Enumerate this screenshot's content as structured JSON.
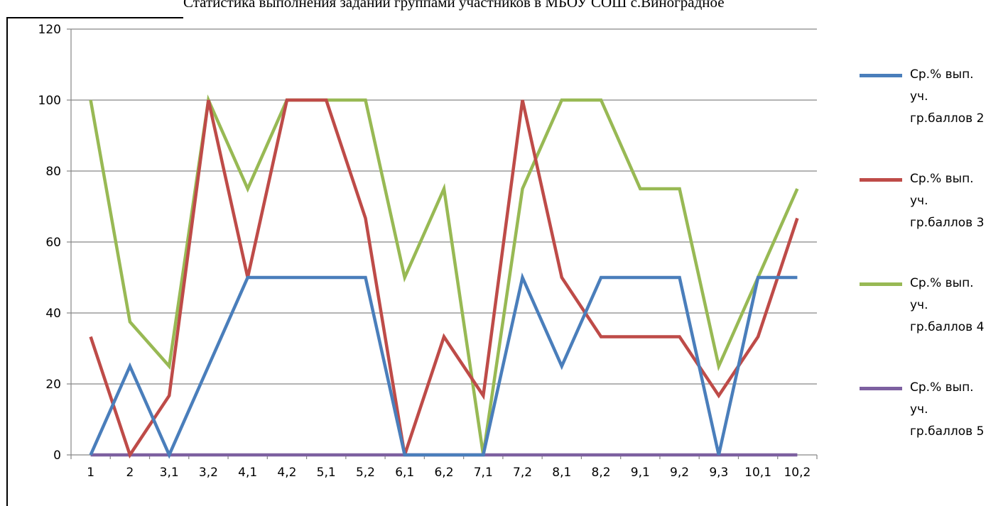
{
  "chart_data": {
    "type": "line",
    "title": "Статистика выполнения заданий группами участников в МБОУ СОШ с.Виноградное",
    "xlabel": "",
    "ylabel": "",
    "ylim": [
      0,
      120
    ],
    "yticks": [
      0,
      20,
      40,
      60,
      80,
      100,
      120
    ],
    "grid": true,
    "legend_position": "right",
    "categories": [
      "1",
      "2",
      "3,1",
      "3,2",
      "4,1",
      "4,2",
      "5,1",
      "5,2",
      "6,1",
      "6,2",
      "7,1",
      "7,2",
      "8,1",
      "8,2",
      "9,1",
      "9,2",
      "9,3",
      "10,1",
      "10,2"
    ],
    "series": [
      {
        "name_lines": [
          "Ср.% вып.",
          "уч.",
          "гр.баллов 2"
        ],
        "color": "#4A7EBB",
        "values": [
          0,
          25,
          0,
          25,
          50,
          50,
          50,
          50,
          0,
          0,
          0,
          50,
          25,
          50,
          50,
          50,
          0,
          50,
          50
        ]
      },
      {
        "name_lines": [
          "Ср.% вып.",
          "уч.",
          "гр.баллов 3"
        ],
        "color": "#BE4B48",
        "values": [
          33.3,
          0,
          16.7,
          100,
          50,
          100,
          100,
          66.7,
          0,
          33.3,
          16.7,
          100,
          50,
          33.3,
          33.3,
          33.3,
          16.7,
          33.3,
          66.7
        ]
      },
      {
        "name_lines": [
          "Ср.% вып.",
          "уч.",
          "гр.баллов 4"
        ],
        "color": "#98B954",
        "values": [
          100,
          37.5,
          25,
          100,
          75,
          100,
          100,
          100,
          50,
          75,
          0,
          75,
          100,
          100,
          75,
          75,
          25,
          50,
          75
        ]
      },
      {
        "name_lines": [
          "Ср.% вып.",
          "уч.",
          "гр.баллов 5"
        ],
        "color": "#7D60A0",
        "values": [
          0,
          0,
          0,
          0,
          0,
          0,
          0,
          0,
          0,
          0,
          0,
          0,
          0,
          0,
          0,
          0,
          0,
          0,
          0
        ]
      }
    ]
  }
}
